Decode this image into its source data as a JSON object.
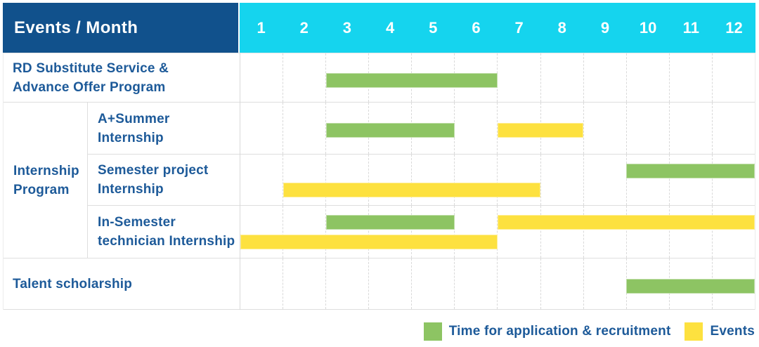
{
  "table": {
    "header_label": "Events / Month",
    "months": [
      "1",
      "2",
      "3",
      "4",
      "5",
      "6",
      "7",
      "8",
      "9",
      "10",
      "11",
      "12"
    ],
    "row_labels": {
      "rd": [
        "RD Substitute Service &",
        "Advance Offer Program"
      ],
      "group": [
        "Internship",
        "Program"
      ],
      "aplus": [
        "A+Summer",
        "Internship"
      ],
      "semester": [
        "Semester project",
        "Internship"
      ],
      "insemester": [
        "In-Semester",
        "technician Internship"
      ],
      "talent": [
        "Talent scholarship"
      ]
    }
  },
  "legend": {
    "items": [
      {
        "label": "Time for application & recruitment",
        "color": "#8dc463"
      },
      {
        "label": "Events",
        "color": "#fde13f"
      }
    ]
  },
  "colors": {
    "header_navy": "#11518c",
    "header_cyan": "#15d4ee",
    "label_blue": "#1d5a99",
    "bar_green": "#8dc463",
    "bar_yellow": "#fde13f",
    "grid_line": "#dedede"
  },
  "chart_data": {
    "type": "bar",
    "variant": "gantt",
    "title": "Events / Month",
    "x_categories": [
      "1",
      "2",
      "3",
      "4",
      "5",
      "6",
      "7",
      "8",
      "9",
      "10",
      "11",
      "12"
    ],
    "x_range": [
      1,
      12
    ],
    "grid": true,
    "legend_position": "bottom-right",
    "series_colors": {
      "Time for application & recruitment": "#8dc463",
      "Events": "#fde13f"
    },
    "rows": [
      {
        "group": null,
        "label": "RD Substitute Service & Advance Offer Program",
        "bars": [
          {
            "series": "Time for application & recruitment",
            "start_month": 3,
            "end_month": 6,
            "lane": "single"
          }
        ]
      },
      {
        "group": "Internship Program",
        "label": "A+Summer Internship",
        "bars": [
          {
            "series": "Time for application & recruitment",
            "start_month": 3,
            "end_month": 5,
            "lane": "single"
          },
          {
            "series": "Events",
            "start_month": 7,
            "end_month": 8,
            "lane": "single"
          }
        ]
      },
      {
        "group": "Internship Program",
        "label": "Semester project Internship",
        "bars": [
          {
            "series": "Time for application & recruitment",
            "start_month": 10,
            "end_month": 12,
            "lane": "top"
          },
          {
            "series": "Events",
            "start_month": 2,
            "end_month": 7,
            "lane": "bottom"
          }
        ]
      },
      {
        "group": "Internship Program",
        "label": "In-Semester technician Internship",
        "bars": [
          {
            "series": "Time for application & recruitment",
            "start_month": 3,
            "end_month": 5,
            "lane": "top"
          },
          {
            "series": "Events",
            "start_month": 7,
            "end_month": 12,
            "lane": "top"
          },
          {
            "series": "Events",
            "start_month": 1,
            "end_month": 6,
            "lane": "bottom"
          }
        ]
      },
      {
        "group": null,
        "label": "Talent scholarship",
        "bars": [
          {
            "series": "Time for application & recruitment",
            "start_month": 10,
            "end_month": 12,
            "lane": "single"
          }
        ]
      }
    ]
  }
}
